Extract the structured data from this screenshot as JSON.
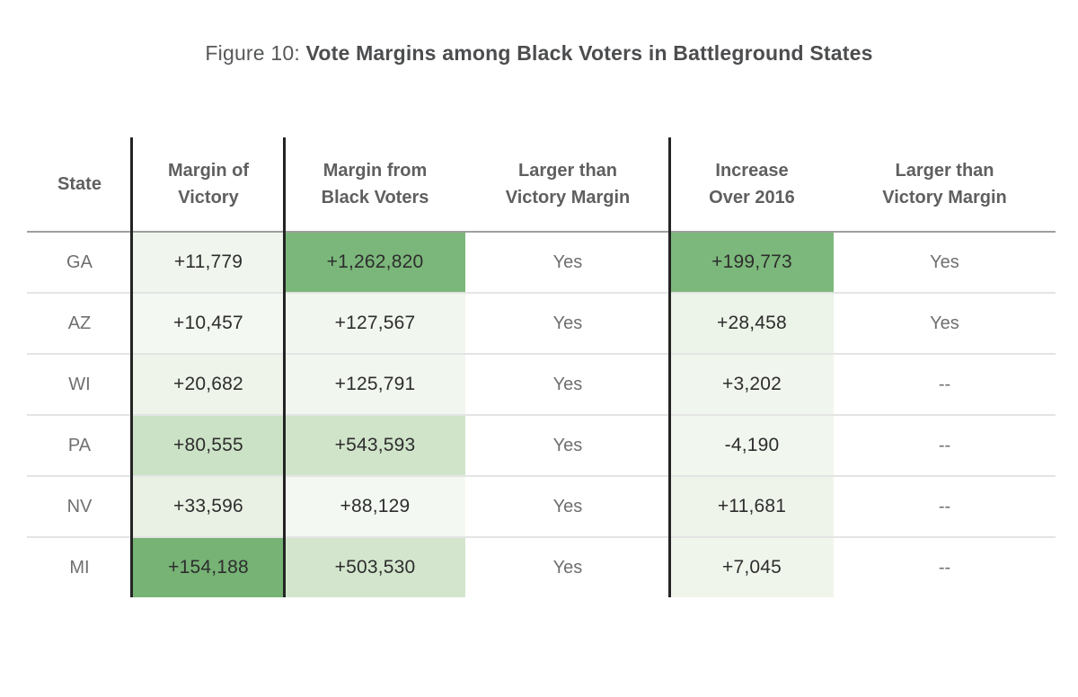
{
  "title": {
    "prefix": "Figure 10: ",
    "main": "Vote Margins among Black Voters in Battleground States"
  },
  "table": {
    "columns": [
      {
        "label": "State"
      },
      {
        "label": "Margin of\nVictory"
      },
      {
        "label": "Margin from\nBlack Voters"
      },
      {
        "label": "Larger than\nVictory Margin"
      },
      {
        "label": "Increase\nOver 2016"
      },
      {
        "label": "Larger than\nVictory Margin"
      }
    ],
    "rows": [
      {
        "state": "GA",
        "margin_of_victory": "+11,779",
        "margin_from_black_voters": "+1,262,820",
        "larger_than_victory_margin_1": "Yes",
        "increase_over_2016": "+199,773",
        "larger_than_victory_margin_2": "Yes",
        "colors": {
          "margin_of_victory": "#f0f6ed",
          "margin_from_black_voters": "#7bb77a",
          "increase_over_2016": "#7cb87b"
        }
      },
      {
        "state": "AZ",
        "margin_of_victory": "+10,457",
        "margin_from_black_voters": "+127,567",
        "larger_than_victory_margin_1": "Yes",
        "increase_over_2016": "+28,458",
        "larger_than_victory_margin_2": "Yes",
        "colors": {
          "margin_of_victory": "#f4f8f2",
          "margin_from_black_voters": "#f1f6ee",
          "increase_over_2016": "#ecf3e8"
        }
      },
      {
        "state": "WI",
        "margin_of_victory": "+20,682",
        "margin_from_black_voters": "+125,791",
        "larger_than_victory_margin_1": "Yes",
        "increase_over_2016": "+3,202",
        "larger_than_victory_margin_2": "--",
        "colors": {
          "margin_of_victory": "#eef4ea",
          "margin_from_black_voters": "#f1f6ee",
          "increase_over_2016": "#f0f5ed"
        }
      },
      {
        "state": "PA",
        "margin_of_victory": "+80,555",
        "margin_from_black_voters": "+543,593",
        "larger_than_victory_margin_1": "Yes",
        "increase_over_2016": "-4,190",
        "larger_than_victory_margin_2": "--",
        "colors": {
          "margin_of_victory": "#cce2c6",
          "margin_from_black_voters": "#d0e4ca",
          "increase_over_2016": "#f1f6ee"
        }
      },
      {
        "state": "NV",
        "margin_of_victory": "+33,596",
        "margin_from_black_voters": "+88,129",
        "larger_than_victory_margin_1": "Yes",
        "increase_over_2016": "+11,681",
        "larger_than_victory_margin_2": "--",
        "colors": {
          "margin_of_victory": "#e9f1e4",
          "margin_from_black_voters": "#f4f8f2",
          "increase_over_2016": "#eff4eb"
        }
      },
      {
        "state": "MI",
        "margin_of_victory": "+154,188",
        "margin_from_black_voters": "+503,530",
        "larger_than_victory_margin_1": "Yes",
        "increase_over_2016": "+7,045",
        "larger_than_victory_margin_2": "--",
        "colors": {
          "margin_of_victory": "#76b375",
          "margin_from_black_voters": "#d3e6cd",
          "increase_over_2016": "#f0f5ec"
        }
      }
    ]
  },
  "chart_data": {
    "type": "table",
    "title": "Figure 10: Vote Margins among Black Voters in Battleground States",
    "columns": [
      "State",
      "Margin of Victory",
      "Margin from Black Voters",
      "Larger than Victory Margin",
      "Increase Over 2016",
      "Larger than Victory Margin"
    ],
    "rows": [
      {
        "state": "GA",
        "margin_of_victory": 11779,
        "margin_from_black_voters": 1262820,
        "larger_than_victory_margin": "Yes",
        "increase_over_2016": 199773,
        "increase_larger_than_victory_margin": "Yes"
      },
      {
        "state": "AZ",
        "margin_of_victory": 10457,
        "margin_from_black_voters": 127567,
        "larger_than_victory_margin": "Yes",
        "increase_over_2016": 28458,
        "increase_larger_than_victory_margin": "Yes"
      },
      {
        "state": "WI",
        "margin_of_victory": 20682,
        "margin_from_black_voters": 125791,
        "larger_than_victory_margin": "Yes",
        "increase_over_2016": 3202,
        "increase_larger_than_victory_margin": "--"
      },
      {
        "state": "PA",
        "margin_of_victory": 80555,
        "margin_from_black_voters": 543593,
        "larger_than_victory_margin": "Yes",
        "increase_over_2016": -4190,
        "increase_larger_than_victory_margin": "--"
      },
      {
        "state": "NV",
        "margin_of_victory": 33596,
        "margin_from_black_voters": 88129,
        "larger_than_victory_margin": "Yes",
        "increase_over_2016": 11681,
        "increase_larger_than_victory_margin": "--"
      },
      {
        "state": "MI",
        "margin_of_victory": 154188,
        "margin_from_black_voters": 503530,
        "larger_than_victory_margin": "Yes",
        "increase_over_2016": 7045,
        "increase_larger_than_victory_margin": "--"
      }
    ],
    "heatmap": {
      "shaded_columns": [
        "Margin of Victory",
        "Margin from Black Voters",
        "Increase Over 2016"
      ],
      "color_scale_low": "#f4f8f2",
      "color_scale_high": "#76b375"
    }
  }
}
